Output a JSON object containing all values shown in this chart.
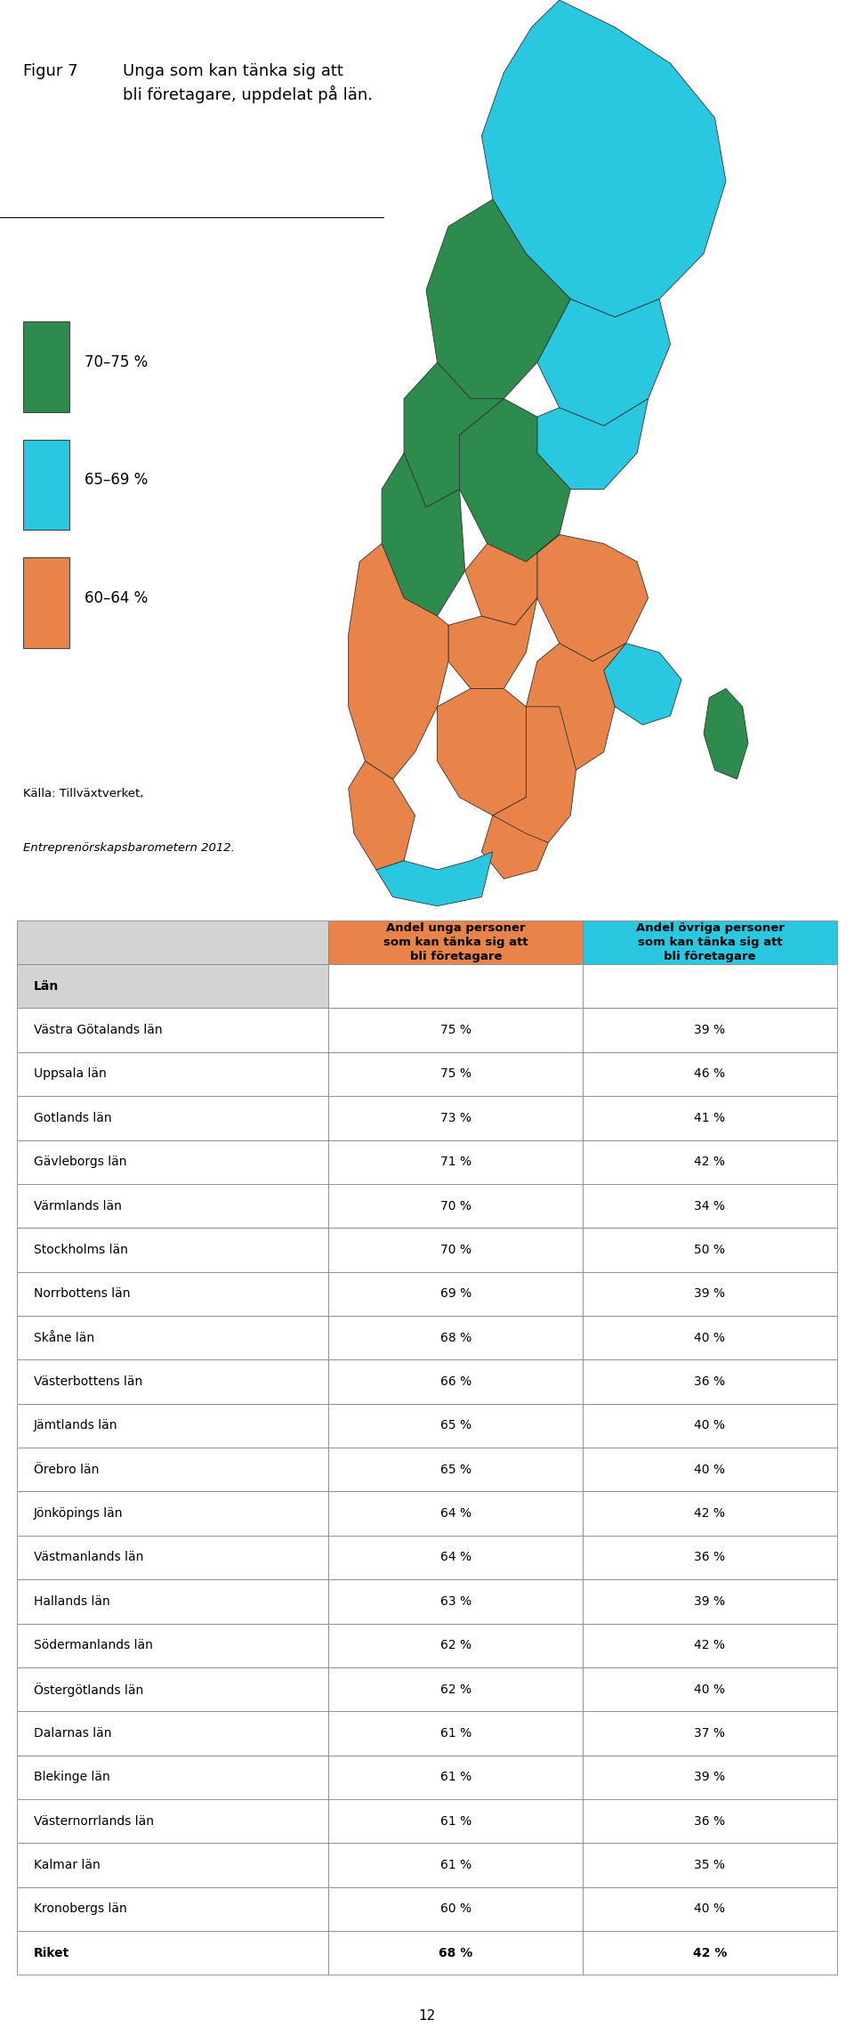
{
  "figure_label": "Figur 7",
  "title": "Unga som kan tänka sig att\nbli företagare, uppdelat på län.",
  "source_line1": "Källa: Tillväxtverket,",
  "source_line2": "Entreprenörskapsbarometern 2012.",
  "legend_items": [
    {
      "label": "70–75 %",
      "color": "#2e8b4e"
    },
    {
      "label": "65–69 %",
      "color": "#29c8e0"
    },
    {
      "label": "60–64 %",
      "color": "#e8834a"
    }
  ],
  "col1_header": "Andel unga personer\nsom kan tänka sig att\nbli företagare",
  "col2_header": "Andel övriga personer\nsom kan tänka sig att\nbli företagare",
  "col_header_bg1": "#e8834a",
  "col_header_bg2": "#29c8e0",
  "header_row_label": "Län",
  "header_row_bg": "#d3d3d3",
  "rows": [
    {
      "lan": "Västra Götalands län",
      "unga": "75 %",
      "ovriga": "39 %",
      "bold": false
    },
    {
      "lan": "Uppsala län",
      "unga": "75 %",
      "ovriga": "46 %",
      "bold": false
    },
    {
      "lan": "Gotlands län",
      "unga": "73 %",
      "ovriga": "41 %",
      "bold": false
    },
    {
      "lan": "Gävleborgs län",
      "unga": "71 %",
      "ovriga": "42 %",
      "bold": false
    },
    {
      "lan": "Värmlands län",
      "unga": "70 %",
      "ovriga": "34 %",
      "bold": false
    },
    {
      "lan": "Stockholms län",
      "unga": "70 %",
      "ovriga": "50 %",
      "bold": false
    },
    {
      "lan": "Norrbottens län",
      "unga": "69 %",
      "ovriga": "39 %",
      "bold": false
    },
    {
      "lan": "Skåne län",
      "unga": "68 %",
      "ovriga": "40 %",
      "bold": false
    },
    {
      "lan": "Västerbottens län",
      "unga": "66 %",
      "ovriga": "36 %",
      "bold": false
    },
    {
      "lan": "Jämtlands län",
      "unga": "65 %",
      "ovriga": "40 %",
      "bold": false
    },
    {
      "lan": "Örebro län",
      "unga": "65 %",
      "ovriga": "40 %",
      "bold": false
    },
    {
      "lan": "Jönköpings län",
      "unga": "64 %",
      "ovriga": "42 %",
      "bold": false
    },
    {
      "lan": "Västmanlands län",
      "unga": "64 %",
      "ovriga": "36 %",
      "bold": false
    },
    {
      "lan": "Hallands län",
      "unga": "63 %",
      "ovriga": "39 %",
      "bold": false
    },
    {
      "lan": "Södermanlands län",
      "unga": "62 %",
      "ovriga": "42 %",
      "bold": false
    },
    {
      "lan": "Östergötlands län",
      "unga": "62 %",
      "ovriga": "40 %",
      "bold": false
    },
    {
      "lan": "Dalarnas län",
      "unga": "61 %",
      "ovriga": "37 %",
      "bold": false
    },
    {
      "lan": "Blekinge län",
      "unga": "61 %",
      "ovriga": "39 %",
      "bold": false
    },
    {
      "lan": "Västernorrlands län",
      "unga": "61 %",
      "ovriga": "36 %",
      "bold": false
    },
    {
      "lan": "Kalmar län",
      "unga": "61 %",
      "ovriga": "35 %",
      "bold": false
    },
    {
      "lan": "Kronobergs län",
      "unga": "60 %",
      "ovriga": "40 %",
      "bold": false
    },
    {
      "lan": "Riket",
      "unga": "68 %",
      "ovriga": "42 %",
      "bold": true
    }
  ],
  "page_number": "12",
  "bg_color": "#ffffff",
  "table_border_color": "#888888"
}
